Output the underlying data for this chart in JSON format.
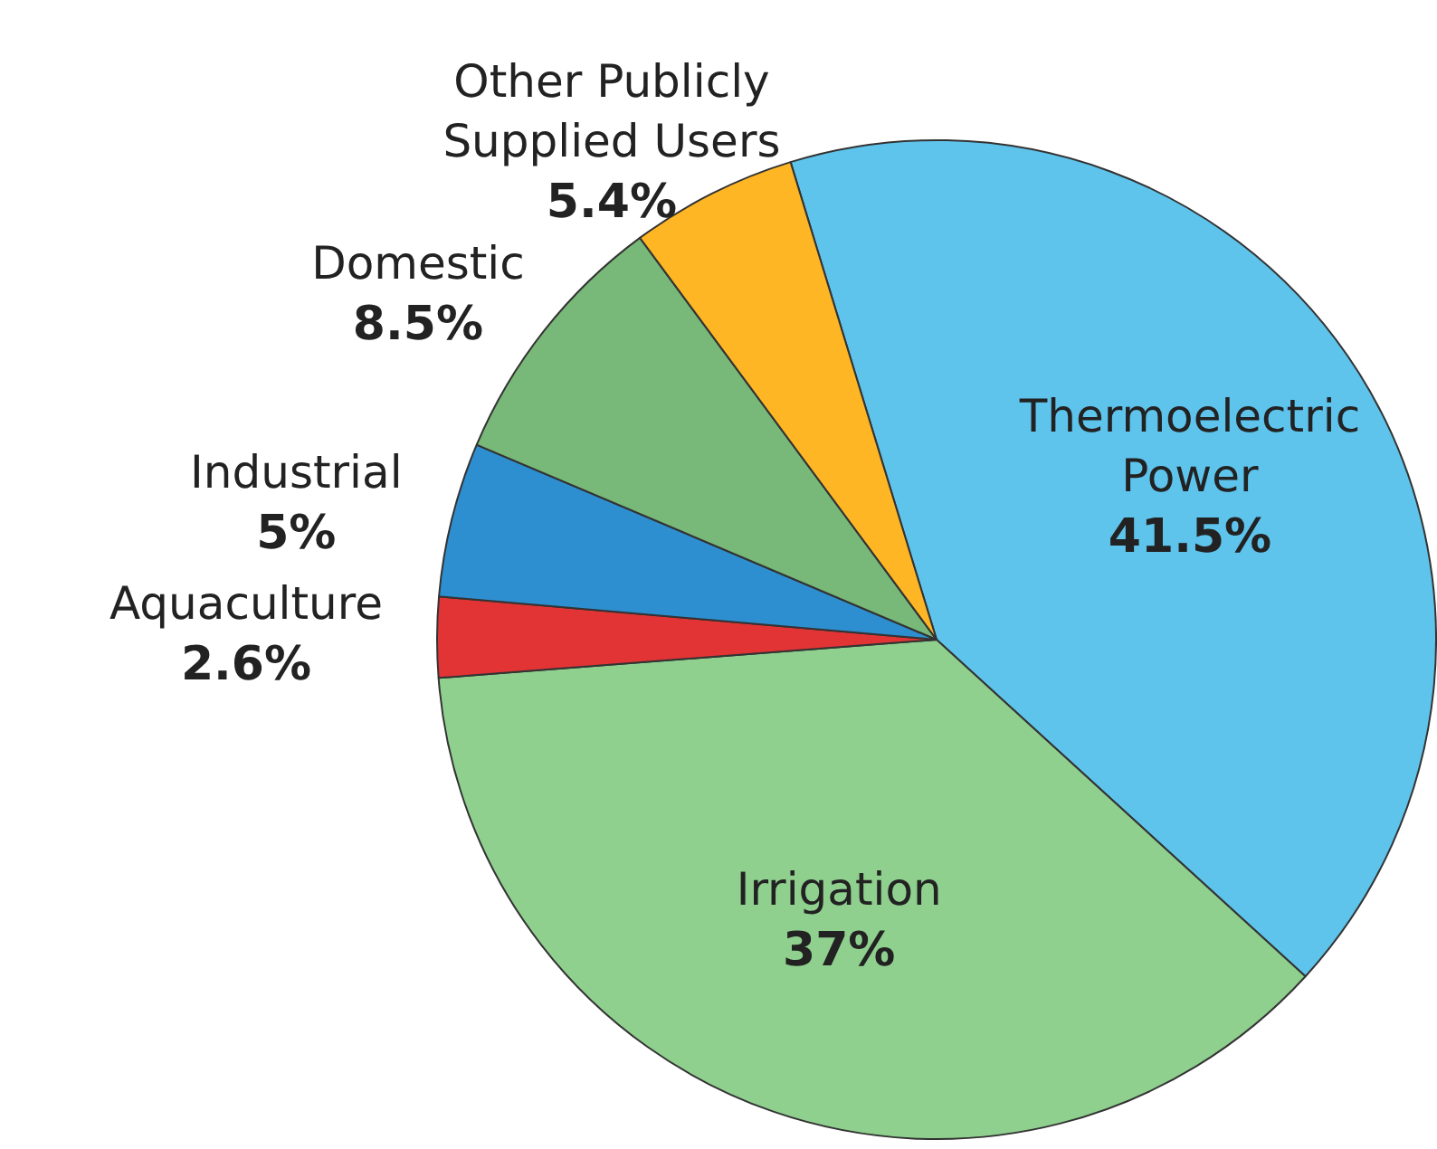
{
  "chart_data": {
    "type": "pie",
    "categories": [
      "Thermoelectric Power",
      "Irrigation",
      "Aquaculture",
      "Industrial",
      "Domestic",
      "Other Publicly Supplied Users"
    ],
    "values": [
      41.5,
      37,
      2.6,
      5,
      8.5,
      5.4
    ],
    "value_labels": [
      "41.5%",
      "37%",
      "2.6%",
      "5%",
      "8.5%",
      "5.4%"
    ],
    "colors": [
      "#5ec4ec",
      "#8fd08f",
      "#e23434",
      "#2e8fd0",
      "#78b878",
      "#ffb624"
    ],
    "legend": false
  }
}
